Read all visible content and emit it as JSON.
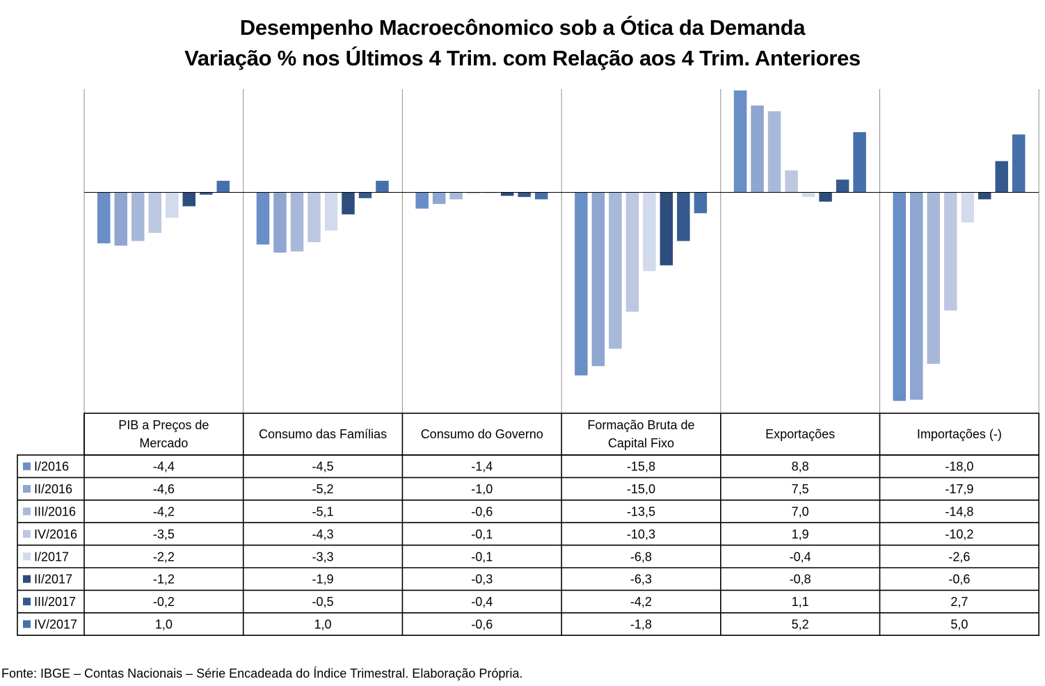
{
  "title": "Desempenho Macroecônomico sob a Ótica da Demanda",
  "subtitle": "Variação % nos Últimos 4 Trim. com Relação aos  4 Trim. Anteriores",
  "source": "Fonte: IBGE – Contas Nacionais – Série Encadeada do Índice Trimestral. Elaboração Própria.",
  "chart_data": {
    "type": "bar",
    "categories": [
      [
        "PIB a Preços de",
        "Mercado"
      ],
      [
        "Consumo das Famílias"
      ],
      [
        "Consumo do Governo"
      ],
      [
        "Formação Bruta de",
        "Capital Fixo"
      ],
      [
        "Exportações"
      ],
      [
        "Importações (-)"
      ]
    ],
    "series": [
      {
        "name": "I/2016",
        "color": "#6a8ec6",
        "values": [
          -4.4,
          -4.5,
          -1.4,
          -15.8,
          8.8,
          -18.0
        ],
        "labels": [
          "-4,4",
          "-4,5",
          "-1,4",
          "-15,8",
          "8,8",
          "-18,0"
        ]
      },
      {
        "name": "II/2016",
        "color": "#8ea6d0",
        "values": [
          -4.6,
          -5.2,
          -1.0,
          -15.0,
          7.5,
          -17.9
        ],
        "labels": [
          "-4,6",
          "-5,2",
          "-1,0",
          "-15,0",
          "7,5",
          "-17,9"
        ]
      },
      {
        "name": "III/2016",
        "color": "#a8b8d8",
        "values": [
          -4.2,
          -5.1,
          -0.6,
          -13.5,
          7.0,
          -14.8
        ],
        "labels": [
          "-4,2",
          "-5,1",
          "-0,6",
          "-13,5",
          "7,0",
          "-14,8"
        ]
      },
      {
        "name": "IV/2016",
        "color": "#bcc8e2",
        "values": [
          -3.5,
          -4.3,
          -0.1,
          -10.3,
          1.9,
          -10.2
        ],
        "labels": [
          "-3,5",
          "-4,3",
          "-0,1",
          "-10,3",
          "1,9",
          "-10,2"
        ]
      },
      {
        "name": "I/2017",
        "color": "#d2dbed",
        "values": [
          -2.2,
          -3.3,
          -0.1,
          -6.8,
          -0.4,
          -2.6
        ],
        "labels": [
          "-2,2",
          "-3,3",
          "-0,1",
          "-6,8",
          "-0,4",
          "-2,6"
        ]
      },
      {
        "name": "II/2017",
        "color": "#2e4d7c",
        "values": [
          -1.2,
          -1.9,
          -0.3,
          -6.3,
          -0.8,
          -0.6
        ],
        "labels": [
          "-1,2",
          "-1,9",
          "-0,3",
          "-6,3",
          "-0,8",
          "-0,6"
        ]
      },
      {
        "name": "III/2017",
        "color": "#35598e",
        "values": [
          -0.2,
          -0.5,
          -0.4,
          -4.2,
          1.1,
          2.7
        ],
        "labels": [
          "-0,2",
          "-0,5",
          "-0,4",
          "-4,2",
          "1,1",
          "2,7"
        ]
      },
      {
        "name": "IV/2017",
        "color": "#4670aa",
        "values": [
          1.0,
          1.0,
          -0.6,
          -1.8,
          5.2,
          5.0
        ],
        "labels": [
          "1,0",
          "1,0",
          "-0,6",
          "-1,8",
          "5,2",
          "5,0"
        ]
      }
    ],
    "ylim": [
      -19,
      9
    ],
    "grid": false,
    "legend": "data-table"
  }
}
